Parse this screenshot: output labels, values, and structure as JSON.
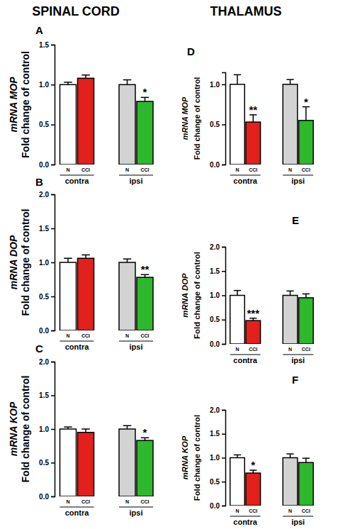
{
  "column_titles": [
    "SPINAL CORD",
    "THALAMUS"
  ],
  "chart_data": [
    {
      "type": "bar",
      "title": "A",
      "ylabel": [
        "mRNA MOP",
        "Fold change of control"
      ],
      "categories": [
        "N",
        "CCI",
        "N",
        "CCI"
      ],
      "groups": [
        "contra",
        "ipsi"
      ],
      "values": [
        1.0,
        1.08,
        1.0,
        0.79
      ],
      "errors": [
        0.03,
        0.04,
        0.06,
        0.05
      ],
      "colors": [
        "#ffffff",
        "#e3201b",
        "#d3d3d3",
        "#2db82d"
      ],
      "ylim": [
        0,
        1.5
      ],
      "yticks": [
        {
          "value": 0,
          "label": "0.0"
        },
        {
          "value": 0.5,
          "label": "0.5"
        },
        {
          "value": 1,
          "label": "1.0"
        },
        {
          "value": 1.5,
          "label": "1.5"
        }
      ],
      "annotations": [
        {
          "index": 3,
          "text": "*"
        }
      ]
    },
    {
      "type": "bar",
      "title": "B",
      "ylabel": [
        "mRNA DOP",
        "Fold change of control"
      ],
      "categories": [
        "N",
        "CCI",
        "N",
        "CCI"
      ],
      "groups": [
        "contra",
        "ipsi"
      ],
      "values": [
        1.0,
        1.06,
        1.0,
        0.78
      ],
      "errors": [
        0.06,
        0.05,
        0.05,
        0.04
      ],
      "colors": [
        "#ffffff",
        "#e3201b",
        "#d3d3d3",
        "#2db82d"
      ],
      "ylim": [
        0,
        2
      ],
      "yticks": [
        {
          "value": 0,
          "label": "0.0"
        },
        {
          "value": 0.5,
          "label": "0.5"
        },
        {
          "value": 1,
          "label": "1.0"
        },
        {
          "value": 1.5,
          "label": "1.5"
        },
        {
          "value": 2,
          "label": "2.0"
        }
      ],
      "annotations": [
        {
          "index": 3,
          "text": "**"
        }
      ]
    },
    {
      "type": "bar",
      "title": "C",
      "ylabel": [
        "mRNA KOP",
        "Fold change of control"
      ],
      "categories": [
        "N",
        "CCI",
        "N",
        "CCI"
      ],
      "groups": [
        "contra",
        "ipsi"
      ],
      "values": [
        1.0,
        0.95,
        1.0,
        0.83
      ],
      "errors": [
        0.03,
        0.05,
        0.05,
        0.04
      ],
      "colors": [
        "#ffffff",
        "#e3201b",
        "#d3d3d3",
        "#2db82d"
      ],
      "ylim": [
        0,
        2
      ],
      "yticks": [
        {
          "value": 0,
          "label": "0.0"
        },
        {
          "value": 0.5,
          "label": "0.5"
        },
        {
          "value": 1,
          "label": "1.0"
        },
        {
          "value": 1.5,
          "label": "1.5"
        },
        {
          "value": 2,
          "label": "2.0"
        }
      ],
      "annotations": [
        {
          "index": 3,
          "text": "*"
        }
      ]
    },
    {
      "type": "bar",
      "title": "D",
      "ylabel": [
        "mRNA MOP",
        "Fold change of control"
      ],
      "categories": [
        "N",
        "CCI",
        "N",
        "CCI"
      ],
      "groups": [
        "contra",
        "ipsi"
      ],
      "values": [
        1.0,
        0.53,
        1.0,
        0.55
      ],
      "errors": [
        0.12,
        0.09,
        0.06,
        0.17
      ],
      "colors": [
        "#ffffff",
        "#e3201b",
        "#d3d3d3",
        "#2db82d"
      ],
      "ylim": [
        0,
        1.15
      ],
      "yticks": [
        {
          "value": 0,
          "label": "0.0"
        },
        {
          "value": 0.5,
          "label": "0.5"
        },
        {
          "value": 1,
          "label": "1.0"
        }
      ],
      "annotations": [
        {
          "index": 1,
          "text": "**"
        },
        {
          "index": 3,
          "text": "*"
        }
      ]
    },
    {
      "type": "bar",
      "title": "E",
      "ylabel": [
        "mRNA DOP",
        "Fold change of control"
      ],
      "categories": [
        "N",
        "CCI",
        "N",
        "CCI"
      ],
      "groups": [
        "contra",
        "ipsi"
      ],
      "values": [
        1.0,
        0.48,
        1.0,
        0.95
      ],
      "errors": [
        0.1,
        0.05,
        0.09,
        0.08
      ],
      "colors": [
        "#ffffff",
        "#e3201b",
        "#d3d3d3",
        "#2db82d"
      ],
      "ylim": [
        0,
        2
      ],
      "yticks": [
        {
          "value": 0,
          "label": "0.0"
        },
        {
          "value": 0.5,
          "label": "0.5"
        },
        {
          "value": 1,
          "label": "1.0"
        },
        {
          "value": 1.5,
          "label": "1.5"
        },
        {
          "value": 2,
          "label": "2.0"
        }
      ],
      "annotations": [
        {
          "index": 1,
          "text": "***"
        }
      ]
    },
    {
      "type": "bar",
      "title": "F",
      "ylabel": [
        "mRNA KOP",
        "Fold change of control"
      ],
      "categories": [
        "N",
        "CCI",
        "N",
        "CCI"
      ],
      "groups": [
        "contra",
        "ipsi"
      ],
      "values": [
        1.0,
        0.68,
        1.0,
        0.9
      ],
      "errors": [
        0.06,
        0.06,
        0.08,
        0.09
      ],
      "colors": [
        "#ffffff",
        "#e3201b",
        "#d3d3d3",
        "#2db82d"
      ],
      "ylim": [
        0,
        2
      ],
      "yticks": [
        {
          "value": 0,
          "label": "0.0"
        },
        {
          "value": 0.5,
          "label": "0.5"
        },
        {
          "value": 1,
          "label": "1.0"
        },
        {
          "value": 1.5,
          "label": "1.5"
        },
        {
          "value": 2,
          "label": "2.0"
        }
      ],
      "annotations": [
        {
          "index": 1,
          "text": "*"
        }
      ]
    }
  ]
}
